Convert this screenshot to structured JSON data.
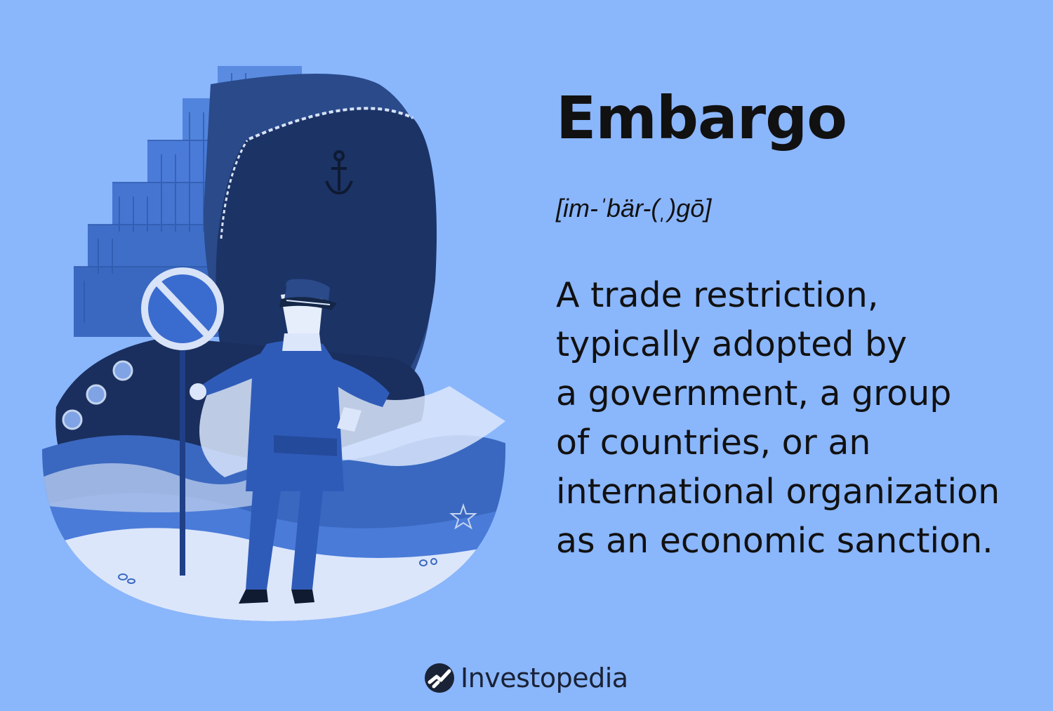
{
  "term": "Embargo",
  "pronunciation": "[im-ˈbär-(ˌ)gō]",
  "definition_lines": [
    "A trade restriction,",
    "typically adopted by",
    "a government, a group",
    "of countries, or an",
    "international organization",
    "as an economic sanction."
  ],
  "brand": {
    "name": "Investopedia"
  },
  "colors": {
    "background": "#8ab6fc",
    "text": "#111111",
    "ship_hull": "#1d3a70",
    "container": "#4a7bd8",
    "sign_blue": "#3a6cd0",
    "brand_dark": "#1a2236"
  },
  "illustration": {
    "icons": [
      "ship-icon",
      "anchor-icon",
      "no-entry-sign-icon",
      "guard-figure-icon",
      "container-stack-icon",
      "wave-icon",
      "starfish-icon"
    ]
  }
}
